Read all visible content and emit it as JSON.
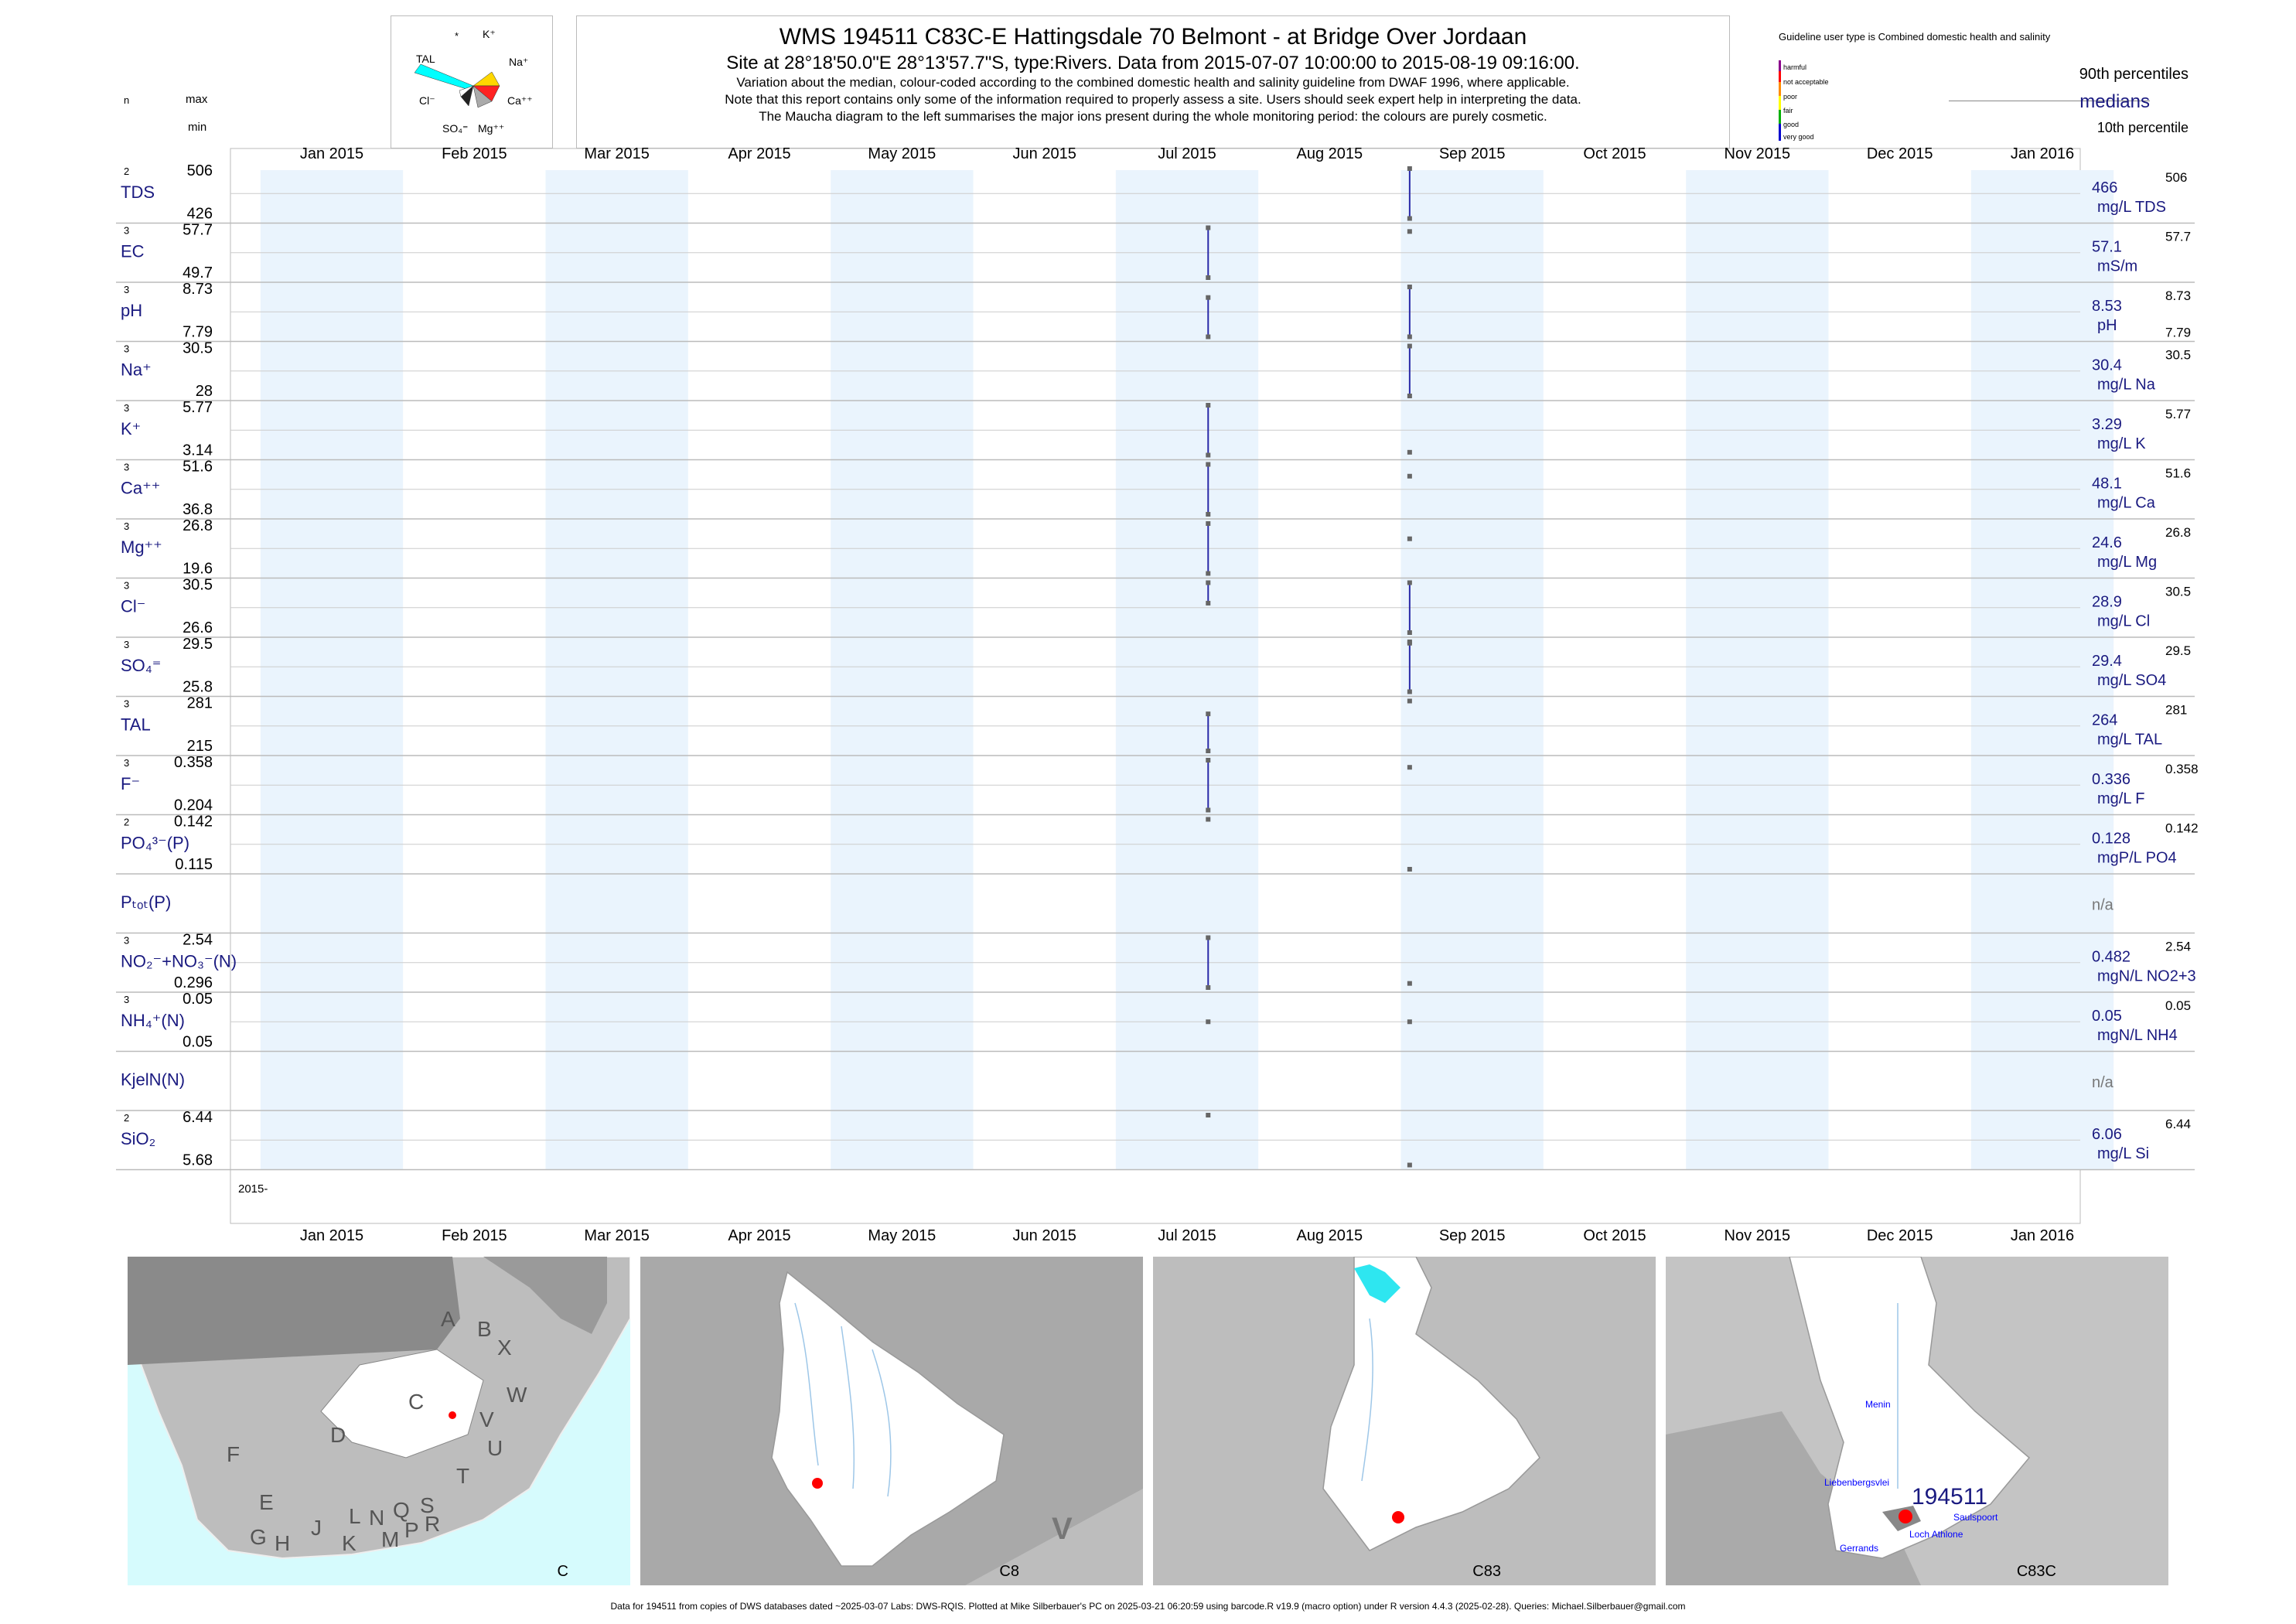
{
  "header": {
    "title": "WMS 194511  C83C-E Hattingsdale 70 Belmont - at Bridge Over Jordaan",
    "subtitle": "Site at 28°18'50.0\"E 28°13'57.7\"S, type:Rivers.  Data from 2015-07-07 10:00:00 to 2015-08-19 09:16:00.",
    "note1": "Variation about the median,  colour-coded according to the combined domestic health and salinity guideline from DWAF 1996, where applicable.",
    "note2": "Note that this report contains only some of the information required to properly assess a site. Users should seek expert help in interpreting the data.",
    "note3": "The Maucha diagram to the left summarises the major ions present during the whole monitoring period: the colours are purely cosmetic."
  },
  "maucha": {
    "labels": [
      "*",
      "K⁺",
      "TAL",
      "Na⁺",
      "Cl⁻",
      "Ca⁺⁺",
      "SO₄⁼",
      "Mg⁺⁺"
    ],
    "colors": [
      "#00ffff",
      "#ffd700",
      "#ff2222",
      "#aaaaaa",
      "#222222",
      "#ffffff"
    ]
  },
  "guideline": {
    "title": "Guideline user type is Combined domestic health and salinity",
    "levels": [
      "harmful",
      "not acceptable",
      "poor",
      "fair",
      "good",
      "very good"
    ],
    "level_colors": [
      "#8b008b",
      "#ff0000",
      "#ff8c00",
      "#ffff00",
      "#00b000",
      "#0000cd"
    ],
    "p90": "90th percentiles",
    "medians": "medians",
    "p10": "10th percentile"
  },
  "col_heads": {
    "n": "n",
    "max": "max",
    "min": "min"
  },
  "chart_data": {
    "type": "line",
    "x_range": [
      "2015-01",
      "2016-01"
    ],
    "months": [
      "Jan 2015",
      "Feb 2015",
      "Mar 2015",
      "Apr 2015",
      "May 2015",
      "Jun 2015",
      "Jul 2015",
      "Aug 2015",
      "Sep 2015",
      "Oct 2015",
      "Nov 2015",
      "Dec 2015",
      "Jan 2016"
    ],
    "year_label": "2015-",
    "sample_dates": [
      "2015-07-07",
      "2015-08-19"
    ],
    "shaded_months": [
      "Jan 2015",
      "Mar 2015",
      "May 2015",
      "Jul 2015",
      "Sep 2015",
      "Nov 2015",
      "Jan 2016"
    ],
    "panels": [
      {
        "label": "TDS",
        "n": "2",
        "max": "506",
        "min": "426",
        "median": "466",
        "unit": "mg/L TDS",
        "rmax": "506",
        "rmin": ""
      },
      {
        "label": "EC",
        "n": "3",
        "max": "57.7",
        "min": "49.7",
        "median": "57.1",
        "unit": "mS/m",
        "rmax": "57.7",
        "rmin": ""
      },
      {
        "label": "pH",
        "n": "3",
        "max": "8.73",
        "min": "7.79",
        "median": "8.53",
        "unit": "pH",
        "rmax": "8.73",
        "rmin": "7.79"
      },
      {
        "label": "Na⁺",
        "n": "3",
        "max": "30.5",
        "min": "28",
        "median": "30.4",
        "unit": "mg/L Na",
        "rmax": "30.5",
        "rmin": ""
      },
      {
        "label": "K⁺",
        "n": "3",
        "max": "5.77",
        "min": "3.14",
        "median": "3.29",
        "unit": "mg/L K",
        "rmax": "5.77",
        "rmin": ""
      },
      {
        "label": "Ca⁺⁺",
        "n": "3",
        "max": "51.6",
        "min": "36.8",
        "median": "48.1",
        "unit": "mg/L Ca",
        "rmax": "51.6",
        "rmin": ""
      },
      {
        "label": "Mg⁺⁺",
        "n": "3",
        "max": "26.8",
        "min": "19.6",
        "median": "24.6",
        "unit": "mg/L Mg",
        "rmax": "26.8",
        "rmin": ""
      },
      {
        "label": "Cl⁻",
        "n": "3",
        "max": "30.5",
        "min": "26.6",
        "median": "28.9",
        "unit": "mg/L Cl",
        "rmax": "30.5",
        "rmin": ""
      },
      {
        "label": "SO₄⁼",
        "n": "3",
        "max": "29.5",
        "min": "25.8",
        "median": "29.4",
        "unit": "mg/L SO4",
        "rmax": "29.5",
        "rmin": ""
      },
      {
        "label": "TAL",
        "n": "3",
        "max": "281",
        "min": "215",
        "median": "264",
        "unit": "mg/L TAL",
        "rmax": "281",
        "rmin": ""
      },
      {
        "label": "F⁻",
        "n": "3",
        "max": "0.358",
        "min": "0.204",
        "median": "0.336",
        "unit": "mg/L F",
        "rmax": "0.358",
        "rmin": ""
      },
      {
        "label": "PO₄³⁻(P)",
        "n": "2",
        "max": "0.142",
        "min": "0.115",
        "median": "0.128",
        "unit": "mgP/L PO4",
        "rmax": "0.142",
        "rmin": ""
      },
      {
        "label": "Pₜₒₜ(P)",
        "n": "",
        "max": "",
        "min": "",
        "median": "n/a",
        "unit": "",
        "rmax": "",
        "rmin": ""
      },
      {
        "label": "NO₂⁻+NO₃⁻(N)",
        "n": "3",
        "max": "2.54",
        "min": "0.296",
        "median": "0.482",
        "unit": "mgN/L NO2+3",
        "rmax": "2.54",
        "rmin": ""
      },
      {
        "label": "NH₄⁺(N)",
        "n": "3",
        "max": "0.05",
        "min": "0.05",
        "median": "0.05",
        "unit": "mgN/L NH4",
        "rmax": "0.05",
        "rmin": ""
      },
      {
        "label": "KjelN(N)",
        "n": "",
        "max": "",
        "min": "",
        "median": "n/a",
        "unit": "",
        "rmax": "",
        "rmin": ""
      },
      {
        "label": "SiO₂",
        "n": "2",
        "max": "6.44",
        "min": "5.68",
        "median": "6.06",
        "unit": "mg/L Si",
        "rmax": "6.44",
        "rmin": ""
      }
    ],
    "series": [
      {
        "panel": "TDS",
        "values": [
          {
            "x": "2015-08-19",
            "y": 426
          },
          {
            "x": "2015-08-19",
            "y": 506
          }
        ]
      },
      {
        "panel": "EC",
        "values": [
          {
            "x": "2015-07-07",
            "y": 49.7
          },
          {
            "x": "2015-07-07",
            "y": 57.7
          },
          {
            "x": "2015-08-19",
            "y": 57.1
          }
        ]
      },
      {
        "panel": "pH",
        "values": [
          {
            "x": "2015-07-07",
            "y": 8.53
          },
          {
            "x": "2015-07-07",
            "y": 7.79
          },
          {
            "x": "2015-08-19",
            "y": 8.73
          },
          {
            "x": "2015-08-19",
            "y": 7.79
          }
        ]
      },
      {
        "panel": "Na⁺",
        "values": [
          {
            "x": "2015-08-19",
            "y": 28
          },
          {
            "x": "2015-08-19",
            "y": 30.5
          }
        ]
      },
      {
        "panel": "K⁺",
        "values": [
          {
            "x": "2015-07-07",
            "y": 3.14
          },
          {
            "x": "2015-07-07",
            "y": 5.77
          },
          {
            "x": "2015-08-19",
            "y": 3.29
          }
        ]
      },
      {
        "panel": "Ca⁺⁺",
        "values": [
          {
            "x": "2015-07-07",
            "y": 36.8
          },
          {
            "x": "2015-07-07",
            "y": 51.6
          },
          {
            "x": "2015-08-19",
            "y": 48.1
          }
        ]
      },
      {
        "panel": "Mg⁺⁺",
        "values": [
          {
            "x": "2015-07-07",
            "y": 19.6
          },
          {
            "x": "2015-07-07",
            "y": 26.8
          },
          {
            "x": "2015-08-19",
            "y": 24.6
          }
        ]
      },
      {
        "panel": "Cl⁻",
        "values": [
          {
            "x": "2015-07-07",
            "y": 30.5
          },
          {
            "x": "2015-07-07",
            "y": 28.9
          },
          {
            "x": "2015-08-19",
            "y": 26.6
          },
          {
            "x": "2015-08-19",
            "y": 30.5
          }
        ]
      },
      {
        "panel": "SO₄⁼",
        "values": [
          {
            "x": "2015-08-19",
            "y": 25.8
          },
          {
            "x": "2015-08-19",
            "y": 29.5
          },
          {
            "x": "2015-08-19",
            "y": 29.4
          }
        ]
      },
      {
        "panel": "TAL",
        "values": [
          {
            "x": "2015-07-07",
            "y": 215
          },
          {
            "x": "2015-07-07",
            "y": 264
          },
          {
            "x": "2015-08-19",
            "y": 281
          }
        ]
      },
      {
        "panel": "F⁻",
        "values": [
          {
            "x": "2015-07-07",
            "y": 0.204
          },
          {
            "x": "2015-07-07",
            "y": 0.358
          },
          {
            "x": "2015-08-19",
            "y": 0.336
          }
        ]
      },
      {
        "panel": "PO₄³⁻(P)",
        "values": [
          {
            "x": "2015-07-07",
            "y": 0.142
          },
          {
            "x": "2015-08-19",
            "y": 0.115
          }
        ]
      },
      {
        "panel": "NO₂⁻+NO₃⁻(N)",
        "values": [
          {
            "x": "2015-07-07",
            "y": 0.296
          },
          {
            "x": "2015-07-07",
            "y": 2.54
          },
          {
            "x": "2015-08-19",
            "y": 0.482
          }
        ]
      },
      {
        "panel": "NH₄⁺(N)",
        "values": [
          {
            "x": "2015-07-07",
            "y": 0.05
          },
          {
            "x": "2015-08-19",
            "y": 0.05
          }
        ]
      },
      {
        "panel": "SiO₂",
        "values": [
          {
            "x": "2015-07-07",
            "y": 6.44
          },
          {
            "x": "2015-08-19",
            "y": 5.68
          }
        ]
      }
    ],
    "colors": {
      "whisker": "#2a2aa8",
      "median_marker": "#666666",
      "shade": "#eaf4fd",
      "grid": "#bbbbbb"
    }
  },
  "maps": [
    {
      "caption": "C",
      "letters": [
        "A",
        "B",
        "X",
        "W",
        "C",
        "V",
        "U",
        "D",
        "T",
        "F",
        "E",
        "S",
        "R",
        "Q",
        "L",
        "N",
        "P",
        "M",
        "G",
        "H",
        "J",
        "K"
      ]
    },
    {
      "caption": "C8",
      "letters": [
        "V"
      ]
    },
    {
      "caption": "C83",
      "letters": []
    },
    {
      "caption": "C83C",
      "site": "194511",
      "places": [
        "Menin",
        "Liebenbergsvlei",
        "Saulspoort",
        "Loch Athlone",
        "Gerrands"
      ]
    }
  ],
  "footer": "Data for 194511 from copies of DWS databases dated ~2025-03-07 Labs: DWS-RQIS. Plotted at Mike Silberbauer's PC on 2025-03-21 06:20:59 using barcode.R v19.9 (macro option) under R version 4.4.3 (2025-02-28). Queries: Michael.Silberbauer@gmail.com"
}
